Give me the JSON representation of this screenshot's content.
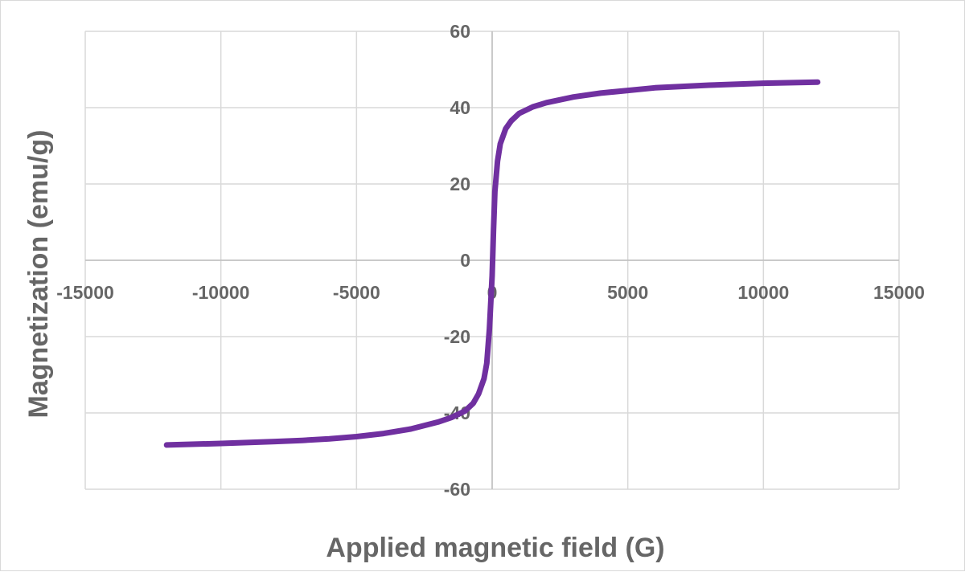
{
  "chart_data": {
    "type": "line",
    "title": "",
    "xlabel": "Applied magnetic field (G)",
    "ylabel": "Magnetization (emu/g)",
    "xlim": [
      -15000,
      15000
    ],
    "ylim": [
      -60,
      60
    ],
    "xticks": [
      -15000,
      -10000,
      -5000,
      0,
      5000,
      10000,
      15000
    ],
    "yticks": [
      -60,
      -40,
      -20,
      0,
      20,
      40,
      60
    ],
    "grid": true,
    "legend": "none",
    "series": [
      {
        "name": "Magnetization",
        "color": "#7030A0",
        "x": [
          -12000,
          -10000,
          -8000,
          -7000,
          -6000,
          -5000,
          -4000,
          -3000,
          -2000,
          -1500,
          -1000,
          -700,
          -500,
          -300,
          -200,
          -100,
          -50,
          0,
          50,
          100,
          200,
          300,
          500,
          700,
          1000,
          1500,
          2000,
          3000,
          4000,
          5000,
          6000,
          8000,
          10000,
          12000
        ],
        "y": [
          -48.4,
          -48.0,
          -47.5,
          -47.2,
          -46.8,
          -46.2,
          -45.4,
          -44.2,
          -42.4,
          -41.2,
          -39.5,
          -37.5,
          -35.0,
          -31.0,
          -27.0,
          -18.0,
          -11.0,
          -4.0,
          8.0,
          18.0,
          26.0,
          30.5,
          34.5,
          36.5,
          38.5,
          40.2,
          41.3,
          42.8,
          43.8,
          44.5,
          45.2,
          45.9,
          46.4,
          46.7
        ]
      }
    ]
  }
}
